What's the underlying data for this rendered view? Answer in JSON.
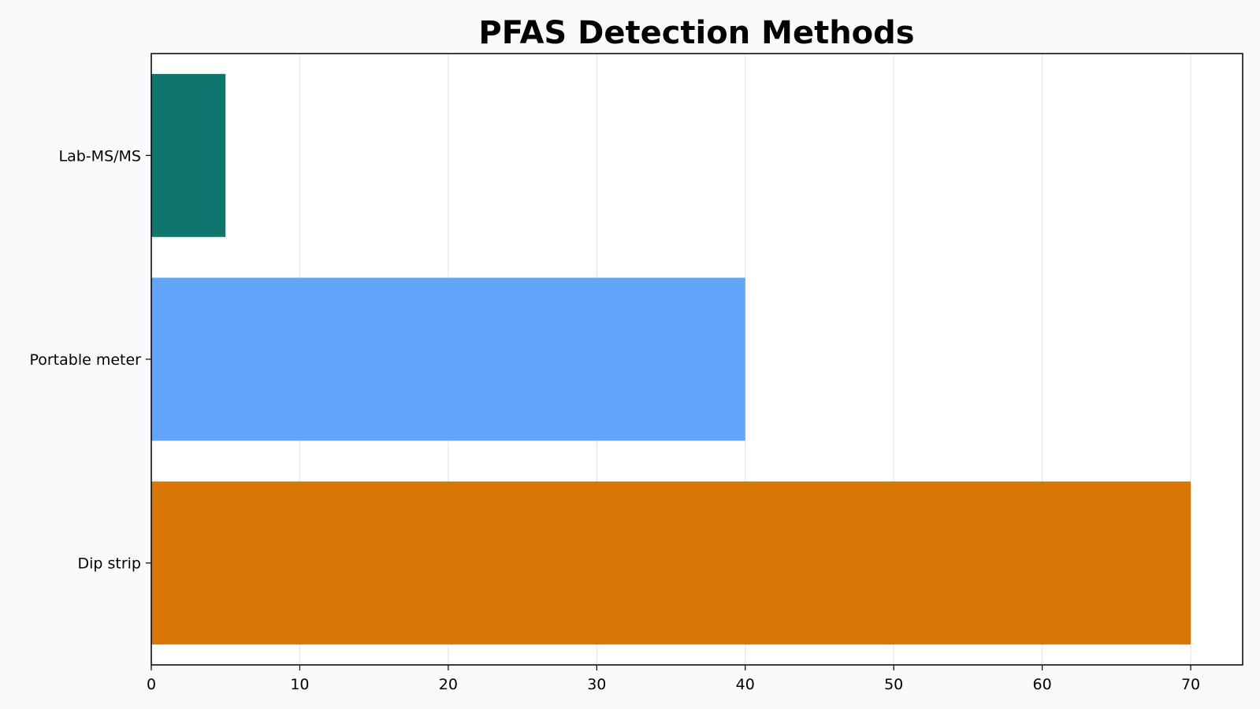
{
  "chart_data": {
    "type": "bar",
    "orientation": "horizontal",
    "title": "PFAS Detection Methods",
    "xlabel": "",
    "ylabel": "",
    "categories": [
      "Dip strip",
      "Portable meter",
      "Lab-MS/MS"
    ],
    "values": [
      70,
      40,
      5
    ],
    "colors": [
      "#d97706",
      "#60a5fa",
      "#0f766e"
    ],
    "xlim": [
      0,
      73.5
    ],
    "xticks": [
      0,
      10,
      20,
      30,
      40,
      50,
      60,
      70
    ],
    "grid": "x",
    "grid_color": "#e5e7eb",
    "background": "#f8fafc",
    "plot_background": "#ffffff",
    "legend": "none"
  }
}
